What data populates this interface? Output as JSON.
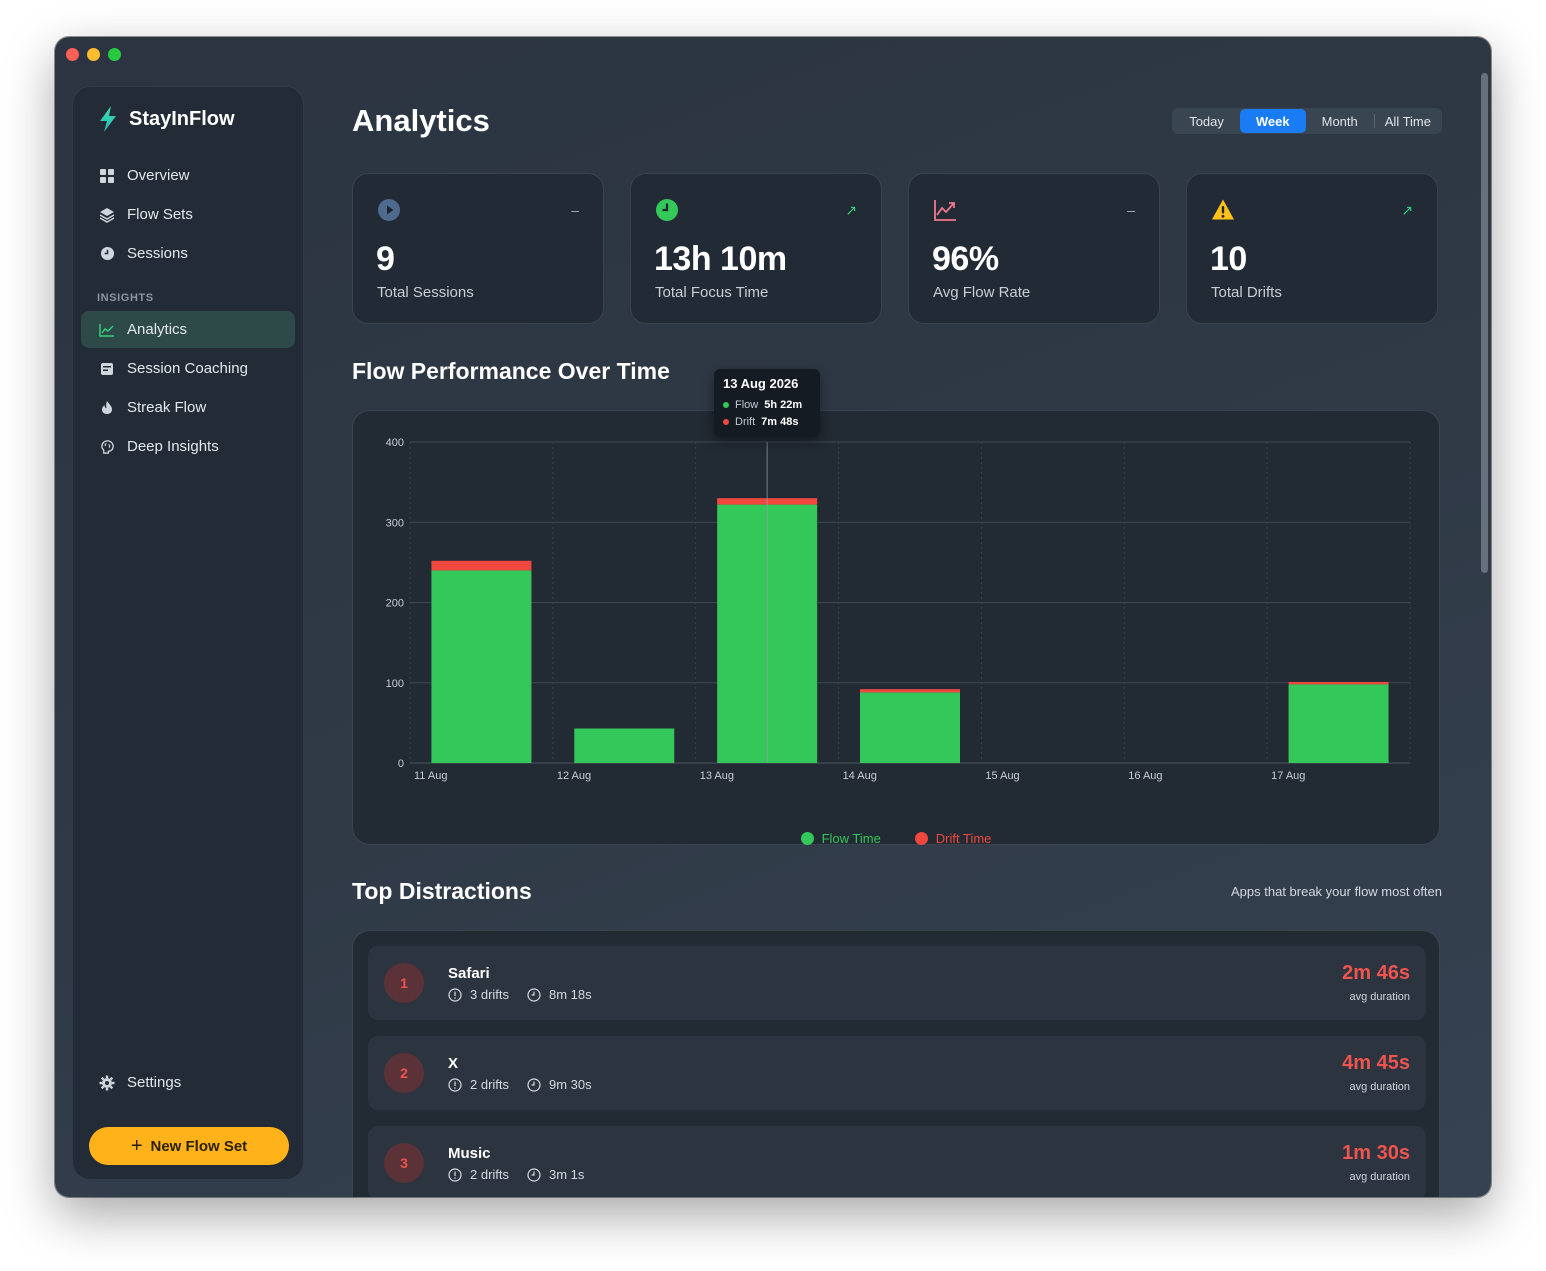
{
  "app": {
    "name": "StayInFlow"
  },
  "sidebar": {
    "items": [
      {
        "label": "Overview",
        "icon": "grid-icon"
      },
      {
        "label": "Flow Sets",
        "icon": "layers-icon"
      },
      {
        "label": "Sessions",
        "icon": "clock-icon"
      }
    ],
    "section_label": "INSIGHTS",
    "insights": [
      {
        "label": "Analytics",
        "icon": "chart-line-icon",
        "active": true
      },
      {
        "label": "Session Coaching",
        "icon": "coaching-icon"
      },
      {
        "label": "Streak Flow",
        "icon": "flame-icon"
      },
      {
        "label": "Deep Insights",
        "icon": "brain-icon"
      }
    ],
    "settings_label": "Settings",
    "new_flow_label": "New Flow Set"
  },
  "header": {
    "title": "Analytics",
    "ranges": [
      "Today",
      "Week",
      "Month",
      "All Time"
    ],
    "selected_range": "Week"
  },
  "stats": [
    {
      "value": "9",
      "label": "Total Sessions",
      "icon": "play-circle-icon",
      "trend": "–",
      "color": "#4e6a8c"
    },
    {
      "value": "13h 10m",
      "label": "Total Focus Time",
      "icon": "clock-green-icon",
      "trend": "↗",
      "color": "#34c759"
    },
    {
      "value": "96%",
      "label": "Avg Flow Rate",
      "icon": "chart-up-icon",
      "trend": "–",
      "color": "#f07a8a"
    },
    {
      "value": "10",
      "label": "Total Drifts",
      "icon": "warning-icon",
      "trend": "↗",
      "color": "#ffc21a"
    }
  ],
  "chart_section": {
    "title": "Flow Performance Over Time"
  },
  "chart_data": {
    "type": "bar",
    "stacked": true,
    "categories": [
      "11 Aug",
      "12 Aug",
      "13 Aug",
      "14 Aug",
      "15 Aug",
      "16 Aug",
      "17 Aug"
    ],
    "series": [
      {
        "name": "Flow Time",
        "color": "#34c759",
        "values": [
          240,
          43,
          322,
          88,
          0,
          0,
          98
        ]
      },
      {
        "name": "Drift Time",
        "color": "#f0473e",
        "values": [
          12,
          0,
          8,
          4,
          0,
          0,
          3
        ]
      }
    ],
    "yticks": [
      0,
      100,
      200,
      300,
      400
    ],
    "ylim": [
      0,
      400
    ],
    "grid": true,
    "legend": "bottom-center",
    "tooltip": {
      "category": "13 Aug",
      "title": "13 Aug 2026",
      "rows": [
        {
          "name": "Flow",
          "value": "5h 22m",
          "color": "#34c759"
        },
        {
          "name": "Drift",
          "value": "7m 48s",
          "color": "#f0473e"
        }
      ]
    }
  },
  "distractions": {
    "title": "Top Distractions",
    "subtitle": "Apps that break your flow most often",
    "items": [
      {
        "rank": "1",
        "name": "Safari",
        "drifts": "3 drifts",
        "time": "8m 18s",
        "avg": "2m 46s",
        "avg_label": "avg duration"
      },
      {
        "rank": "2",
        "name": "X",
        "drifts": "2 drifts",
        "time": "9m 30s",
        "avg": "4m 45s",
        "avg_label": "avg duration"
      },
      {
        "rank": "3",
        "name": "Music",
        "drifts": "2 drifts",
        "time": "3m 1s",
        "avg": "1m 30s",
        "avg_label": "avg duration"
      }
    ]
  }
}
